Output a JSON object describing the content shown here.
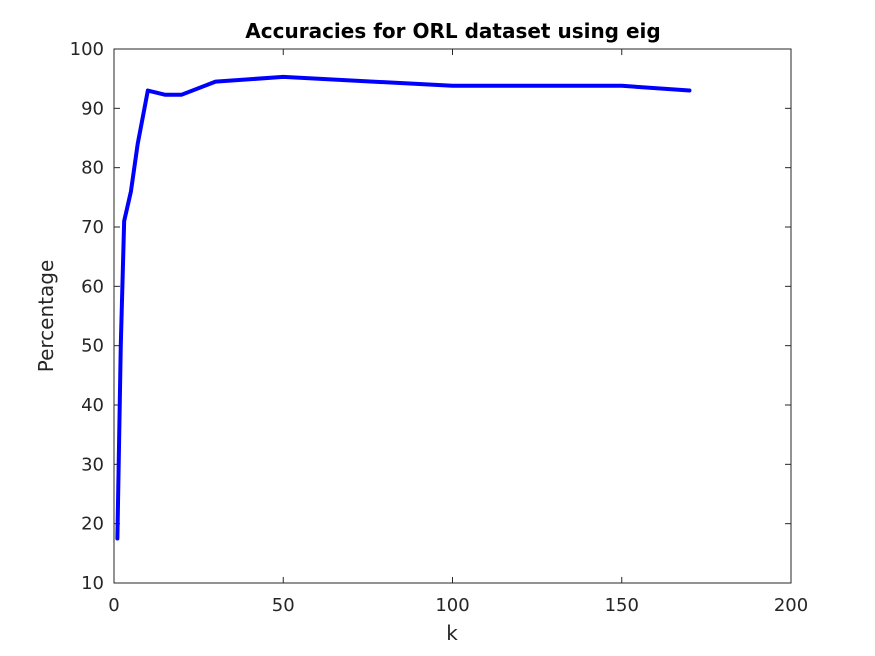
{
  "chart_data": {
    "type": "line",
    "title": "Accuracies for ORL dataset using eig",
    "xlabel": "k",
    "ylabel": "Percentage",
    "xlim": [
      0,
      200
    ],
    "ylim": [
      10,
      100
    ],
    "xticks": [
      "0",
      "50",
      "100",
      "150",
      "200"
    ],
    "yticks": [
      "10",
      "20",
      "30",
      "40",
      "50",
      "60",
      "70",
      "80",
      "90",
      "100"
    ],
    "grid": false,
    "legend": "none",
    "series": [
      {
        "color": "#0000ff",
        "x": [
          1,
          2,
          3,
          5,
          7,
          10,
          15,
          20,
          30,
          50,
          100,
          150,
          170
        ],
        "y": [
          17.5,
          50,
          71,
          76,
          84,
          93,
          92.3,
          92.3,
          94.5,
          95.3,
          93.8,
          93.8,
          93
        ]
      }
    ]
  }
}
